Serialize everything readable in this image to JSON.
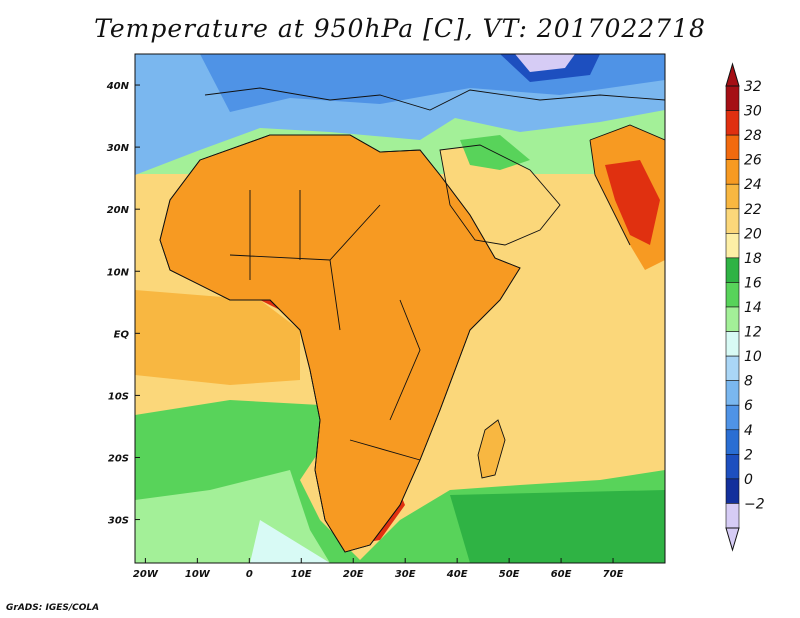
{
  "title": "Temperature at 950hPa [C], VT: 2017022718",
  "credit": "GrADS: IGES/COLA",
  "map": {
    "lon_range": [
      -22,
      80
    ],
    "lat_range": [
      -37,
      45
    ],
    "lon_ticks": [
      {
        "value": -20,
        "label": "20W"
      },
      {
        "value": -10,
        "label": "10W"
      },
      {
        "value": 0,
        "label": "0"
      },
      {
        "value": 10,
        "label": "10E"
      },
      {
        "value": 20,
        "label": "20E"
      },
      {
        "value": 30,
        "label": "30E"
      },
      {
        "value": 40,
        "label": "40E"
      },
      {
        "value": 50,
        "label": "50E"
      },
      {
        "value": 60,
        "label": "60E"
      },
      {
        "value": 70,
        "label": "70E"
      }
    ],
    "lat_ticks": [
      {
        "value": 40,
        "label": "40N"
      },
      {
        "value": 30,
        "label": "30N"
      },
      {
        "value": 20,
        "label": "20N"
      },
      {
        "value": 10,
        "label": "10N"
      },
      {
        "value": 0,
        "label": "EQ"
      },
      {
        "value": -10,
        "label": "10S"
      },
      {
        "value": -20,
        "label": "20S"
      },
      {
        "value": -30,
        "label": "30S"
      }
    ]
  },
  "colorbar": {
    "levels": [
      32,
      30,
      28,
      26,
      24,
      22,
      20,
      18,
      16,
      14,
      12,
      10,
      8,
      6,
      4,
      2,
      0,
      -2
    ],
    "labels": [
      "32",
      "30",
      "28",
      "26",
      "24",
      "22",
      "20",
      "18",
      "16",
      "14",
      "12",
      "10",
      "8",
      "6",
      "4",
      "2",
      "0",
      "−2"
    ],
    "colors_top_to_bottom": [
      "#a50f15",
      "#e03010",
      "#f26a0e",
      "#f79a22",
      "#f8b741",
      "#fbd77a",
      "#fdefa6",
      "#2fb344",
      "#58d35a",
      "#a3f098",
      "#d8faf5",
      "#aad6f6",
      "#7ab7ef",
      "#4f93e6",
      "#2a6ed3",
      "#1d4fbf",
      "#13309c",
      "#d6ccf5"
    ]
  }
}
